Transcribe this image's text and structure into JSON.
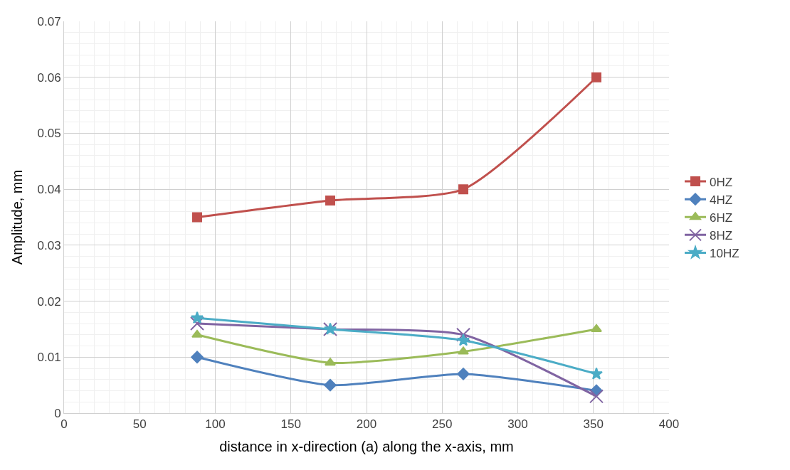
{
  "chart_data": {
    "type": "line",
    "xlabel": "distance in x-direction (a) along the x-axis, mm",
    "ylabel": "Amplitude, mm",
    "x": [
      88,
      176,
      264,
      352
    ],
    "series": [
      {
        "name": "0HZ",
        "color": "#c0504d",
        "marker": "square",
        "values": [
          0.035,
          0.038,
          0.04,
          0.06
        ]
      },
      {
        "name": "4HZ",
        "color": "#4f81bd",
        "marker": "diamond",
        "values": [
          0.01,
          0.005,
          0.007,
          0.004
        ]
      },
      {
        "name": "6HZ",
        "color": "#9bbb59",
        "marker": "triangle",
        "values": [
          0.014,
          0.009,
          0.011,
          0.015
        ]
      },
      {
        "name": "8HZ",
        "color": "#8064a2",
        "marker": "cross",
        "values": [
          0.016,
          0.015,
          0.014,
          0.003
        ]
      },
      {
        "name": "10HZ",
        "color": "#4bacc6",
        "marker": "star",
        "values": [
          0.017,
          0.015,
          0.013,
          0.007
        ]
      }
    ],
    "xlim": [
      0,
      400
    ],
    "xticks": [
      0,
      50,
      100,
      150,
      200,
      250,
      300,
      350,
      400
    ],
    "ylim": [
      0,
      0.07
    ],
    "yticks": [
      {
        "value": 0,
        "label": "0"
      },
      0.01,
      0.02,
      0.03,
      0.04,
      0.05,
      0.06,
      0.07
    ],
    "grid": true,
    "legend": "right",
    "line_style": "solid"
  }
}
